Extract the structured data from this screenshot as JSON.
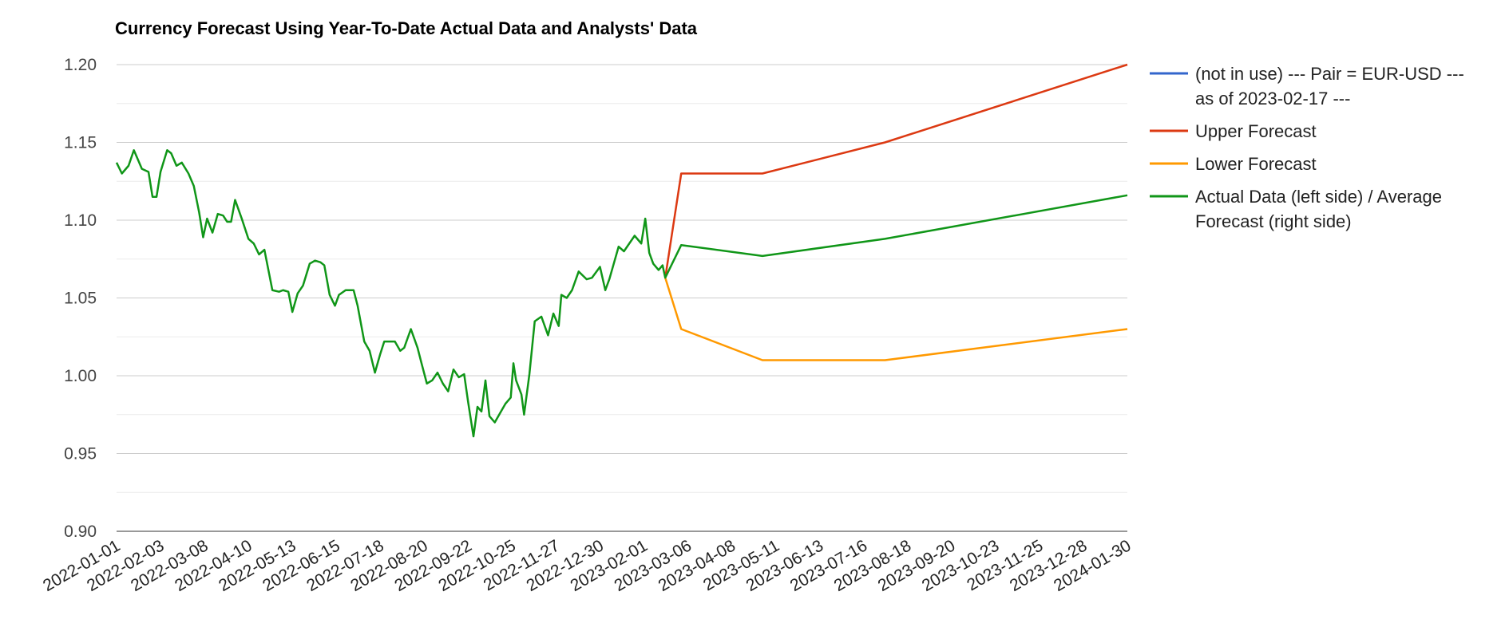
{
  "chart_data": {
    "type": "line",
    "title": "Currency Forecast Using Year-To-Date Actual Data and Analysts' Data",
    "xlabel": "",
    "ylabel": "",
    "ylim": [
      0.9,
      1.2
    ],
    "y_ticks": [
      "1.20",
      "1.15",
      "1.10",
      "1.05",
      "1.00",
      "0.95",
      "0.90"
    ],
    "x_range": [
      "2022-01-01",
      "2024-01-30"
    ],
    "x_ticks": [
      "2022-01-01",
      "2022-02-03",
      "2022-03-08",
      "2022-04-10",
      "2022-05-13",
      "2022-06-15",
      "2022-07-18",
      "2022-08-20",
      "2022-09-22",
      "2022-10-25",
      "2022-11-27",
      "2022-12-30",
      "2023-02-01",
      "2023-03-06",
      "2023-04-08",
      "2023-05-11",
      "2023-06-13",
      "2023-07-16",
      "2023-08-18",
      "2023-09-20",
      "2023-10-23",
      "2023-11-25",
      "2023-12-28",
      "2024-01-30"
    ],
    "grid": true,
    "legend_position": "right",
    "series": [
      {
        "name": "(not in use) --- Pair = EUR-USD --- as of 2023-02-17 ---",
        "legend_lines": [
          "(not in use) --- Pair = EUR-USD ---",
          "as of 2023-02-17 ---"
        ],
        "color": "#3366cc",
        "points": []
      },
      {
        "name": "Upper Forecast",
        "legend_lines": [
          "Upper Forecast"
        ],
        "color": "#dc3912",
        "points": [
          [
            "2023-02-17",
            1.063
          ],
          [
            "2023-03-01",
            1.13
          ],
          [
            "2023-05-01",
            1.13
          ],
          [
            "2023-08-01",
            1.15
          ],
          [
            "2024-01-30",
            1.2
          ]
        ]
      },
      {
        "name": "Lower Forecast",
        "legend_lines": [
          "Lower Forecast"
        ],
        "color": "#ff9900",
        "points": [
          [
            "2023-02-17",
            1.063
          ],
          [
            "2023-03-01",
            1.03
          ],
          [
            "2023-05-01",
            1.01
          ],
          [
            "2023-08-01",
            1.01
          ],
          [
            "2024-01-30",
            1.03
          ]
        ]
      },
      {
        "name": "Actual Data (left side) / Average Forecast (right side)",
        "legend_lines": [
          "Actual Data (left side) / Average",
          "Forecast (right side)"
        ],
        "color": "#109618",
        "points": [
          [
            "2022-01-01",
            1.137
          ],
          [
            "2022-01-05",
            1.13
          ],
          [
            "2022-01-10",
            1.135
          ],
          [
            "2022-01-14",
            1.145
          ],
          [
            "2022-01-20",
            1.133
          ],
          [
            "2022-01-25",
            1.131
          ],
          [
            "2022-01-28",
            1.115
          ],
          [
            "2022-01-31",
            1.115
          ],
          [
            "2022-02-03",
            1.131
          ],
          [
            "2022-02-08",
            1.145
          ],
          [
            "2022-02-11",
            1.143
          ],
          [
            "2022-02-15",
            1.135
          ],
          [
            "2022-02-19",
            1.137
          ],
          [
            "2022-02-24",
            1.13
          ],
          [
            "2022-02-28",
            1.122
          ],
          [
            "2022-03-04",
            1.105
          ],
          [
            "2022-03-07",
            1.089
          ],
          [
            "2022-03-10",
            1.101
          ],
          [
            "2022-03-14",
            1.092
          ],
          [
            "2022-03-18",
            1.104
          ],
          [
            "2022-03-22",
            1.103
          ],
          [
            "2022-03-25",
            1.099
          ],
          [
            "2022-03-28",
            1.099
          ],
          [
            "2022-03-31",
            1.113
          ],
          [
            "2022-04-05",
            1.101
          ],
          [
            "2022-04-10",
            1.088
          ],
          [
            "2022-04-14",
            1.085
          ],
          [
            "2022-04-18",
            1.078
          ],
          [
            "2022-04-22",
            1.081
          ],
          [
            "2022-04-28",
            1.055
          ],
          [
            "2022-05-03",
            1.054
          ],
          [
            "2022-05-06",
            1.055
          ],
          [
            "2022-05-10",
            1.054
          ],
          [
            "2022-05-13",
            1.041
          ],
          [
            "2022-05-17",
            1.053
          ],
          [
            "2022-05-21",
            1.058
          ],
          [
            "2022-05-26",
            1.072
          ],
          [
            "2022-05-30",
            1.074
          ],
          [
            "2022-06-03",
            1.073
          ],
          [
            "2022-06-06",
            1.071
          ],
          [
            "2022-06-10",
            1.052
          ],
          [
            "2022-06-14",
            1.045
          ],
          [
            "2022-06-17",
            1.052
          ],
          [
            "2022-06-22",
            1.055
          ],
          [
            "2022-06-28",
            1.055
          ],
          [
            "2022-07-01",
            1.045
          ],
          [
            "2022-07-06",
            1.022
          ],
          [
            "2022-07-10",
            1.016
          ],
          [
            "2022-07-14",
            1.002
          ],
          [
            "2022-07-18",
            1.014
          ],
          [
            "2022-07-21",
            1.022
          ],
          [
            "2022-07-25",
            1.022
          ],
          [
            "2022-07-29",
            1.022
          ],
          [
            "2022-08-02",
            1.016
          ],
          [
            "2022-08-05",
            1.018
          ],
          [
            "2022-08-10",
            1.03
          ],
          [
            "2022-08-15",
            1.018
          ],
          [
            "2022-08-18",
            1.008
          ],
          [
            "2022-08-22",
            0.995
          ],
          [
            "2022-08-26",
            0.997
          ],
          [
            "2022-08-30",
            1.002
          ],
          [
            "2022-09-03",
            0.995
          ],
          [
            "2022-09-07",
            0.99
          ],
          [
            "2022-09-11",
            1.004
          ],
          [
            "2022-09-15",
            0.999
          ],
          [
            "2022-09-19",
            1.001
          ],
          [
            "2022-09-22",
            0.983
          ],
          [
            "2022-09-26",
            0.961
          ],
          [
            "2022-09-29",
            0.98
          ],
          [
            "2022-10-02",
            0.977
          ],
          [
            "2022-10-05",
            0.997
          ],
          [
            "2022-10-08",
            0.974
          ],
          [
            "2022-10-12",
            0.97
          ],
          [
            "2022-10-16",
            0.976
          ],
          [
            "2022-10-20",
            0.982
          ],
          [
            "2022-10-24",
            0.986
          ],
          [
            "2022-10-26",
            1.008
          ],
          [
            "2022-10-28",
            0.997
          ],
          [
            "2022-11-01",
            0.988
          ],
          [
            "2022-11-03",
            0.975
          ],
          [
            "2022-11-07",
            1.001
          ],
          [
            "2022-11-11",
            1.035
          ],
          [
            "2022-11-16",
            1.038
          ],
          [
            "2022-11-21",
            1.026
          ],
          [
            "2022-11-25",
            1.04
          ],
          [
            "2022-11-29",
            1.032
          ],
          [
            "2022-12-01",
            1.052
          ],
          [
            "2022-12-05",
            1.05
          ],
          [
            "2022-12-09",
            1.055
          ],
          [
            "2022-12-14",
            1.067
          ],
          [
            "2022-12-20",
            1.062
          ],
          [
            "2022-12-24",
            1.063
          ],
          [
            "2022-12-30",
            1.07
          ],
          [
            "2023-01-03",
            1.055
          ],
          [
            "2023-01-06",
            1.062
          ],
          [
            "2023-01-10",
            1.074
          ],
          [
            "2023-01-13",
            1.083
          ],
          [
            "2023-01-17",
            1.08
          ],
          [
            "2023-01-21",
            1.085
          ],
          [
            "2023-01-25",
            1.09
          ],
          [
            "2023-01-30",
            1.085
          ],
          [
            "2023-02-02",
            1.101
          ],
          [
            "2023-02-05",
            1.079
          ],
          [
            "2023-02-08",
            1.072
          ],
          [
            "2023-02-12",
            1.068
          ],
          [
            "2023-02-15",
            1.071
          ],
          [
            "2023-02-17",
            1.063
          ],
          [
            "2023-03-01",
            1.084
          ],
          [
            "2023-05-01",
            1.077
          ],
          [
            "2023-08-01",
            1.088
          ],
          [
            "2024-01-30",
            1.116
          ]
        ]
      }
    ]
  }
}
